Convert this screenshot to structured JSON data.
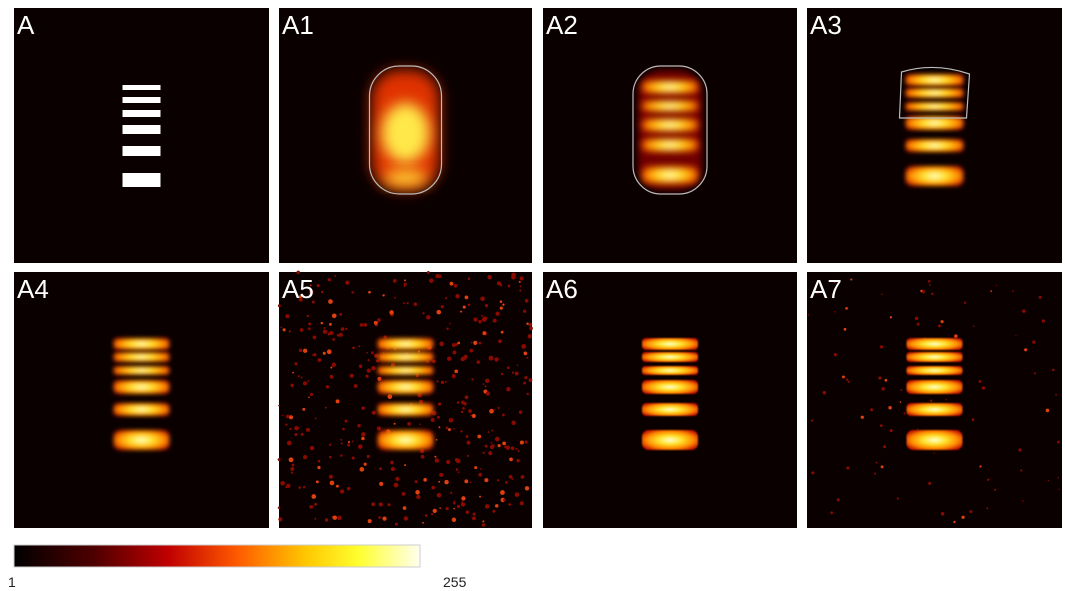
{
  "panels": [
    {
      "label": "A"
    },
    {
      "label": "A1"
    },
    {
      "label": "A2"
    },
    {
      "label": "A3"
    },
    {
      "label": "A4"
    },
    {
      "label": "A5"
    },
    {
      "label": "A6"
    },
    {
      "label": "A7"
    }
  ],
  "colorbar": {
    "min": 1,
    "max": 255
  }
}
